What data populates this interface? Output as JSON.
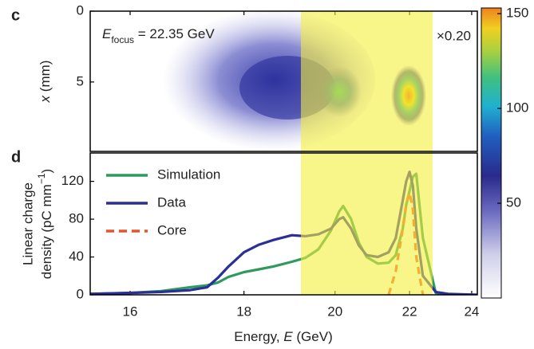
{
  "chart_data": [
    {
      "type": "image",
      "panel_label": "c",
      "ylabel": {
        "symbol": "x",
        "text": " (mm)"
      },
      "ylim": [
        0,
        9.9
      ],
      "yticks": [
        0,
        5
      ],
      "annotation": {
        "symbol": "E",
        "subscript": "focus",
        "text": " = 22.35 GeV"
      },
      "scale_note": "×0.20",
      "colorbar": {
        "clim": [
          0,
          153
        ],
        "ticks": [
          50,
          100,
          150
        ]
      }
    },
    {
      "type": "line",
      "panel_label": "d",
      "xlabel": {
        "text": "Energy, ",
        "symbol": "E",
        "unit": " (GeV)"
      },
      "ylabel": {
        "line1": "Linear charge",
        "line2": "density (pC mm",
        "superscript": "−1",
        "end": ")"
      },
      "x": [
        15.4,
        16,
        16.5,
        17,
        17.3,
        17.5,
        17.7,
        18,
        18.3,
        18.6,
        19,
        19.3,
        19.6,
        19.9,
        20.1,
        20.2,
        20.4,
        20.6,
        20.8,
        21.1,
        21.4,
        21.6,
        21.8,
        21.9,
        22.0,
        22.1,
        22.2,
        22.4,
        22.8,
        23.2,
        24.2
      ],
      "xlim": [
        15.4,
        24.2
      ],
      "xscale": "reciprocal",
      "xticks": [
        16,
        18,
        20,
        22,
        24
      ],
      "ylim": [
        0,
        150
      ],
      "yticks": [
        0,
        40,
        80,
        120
      ],
      "highlight": [
        19.2,
        22.7
      ],
      "highlight_color": "#f4ee3a",
      "series": [
        {
          "name": "Simulation",
          "color": "#2e9a5e",
          "values": [
            1,
            2,
            4,
            8,
            10,
            13,
            19,
            24,
            27,
            30,
            35,
            39,
            48,
            68,
            88,
            94,
            80,
            55,
            40,
            33,
            34,
            42,
            70,
            95,
            110,
            125,
            128,
            60,
            2,
            0,
            0
          ]
        },
        {
          "name": "Data",
          "color": "#2b2f96",
          "values": [
            1,
            2,
            3,
            5,
            8,
            18,
            30,
            45,
            53,
            58,
            63,
            62,
            64,
            70,
            80,
            82,
            70,
            52,
            42,
            40,
            45,
            60,
            100,
            120,
            130,
            115,
            70,
            20,
            3,
            1,
            0
          ]
        },
        {
          "name": "Core",
          "color": "#e8542a",
          "dash": true,
          "values": [
            null,
            null,
            null,
            null,
            null,
            null,
            null,
            null,
            null,
            null,
            null,
            null,
            null,
            null,
            null,
            null,
            null,
            null,
            null,
            null,
            0,
            25,
            70,
            95,
            108,
            90,
            40,
            0,
            null,
            null,
            null
          ]
        }
      ]
    }
  ]
}
